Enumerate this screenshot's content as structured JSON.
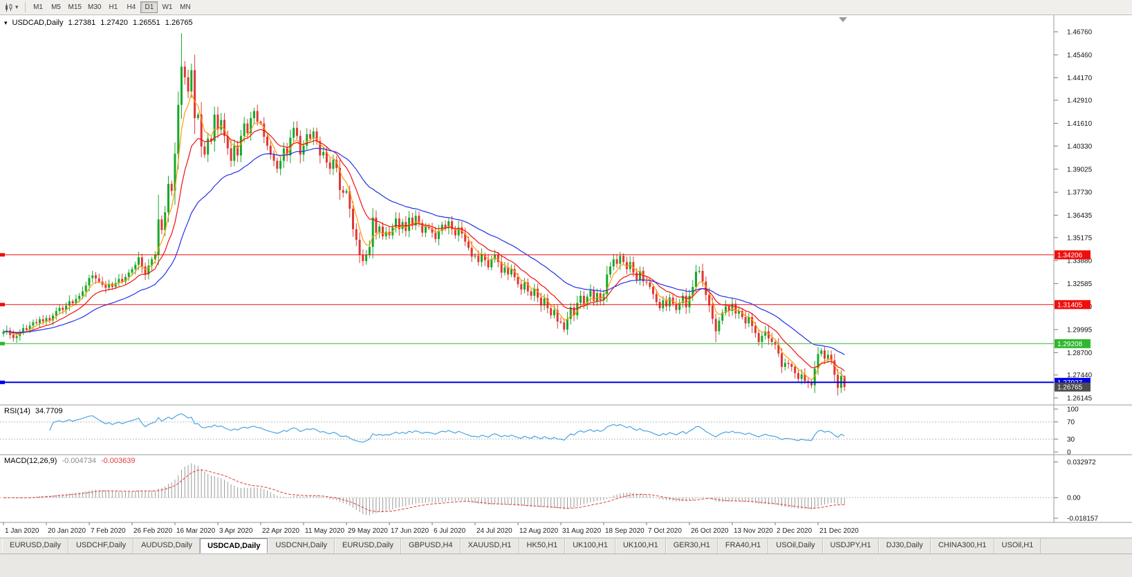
{
  "toolbar": {
    "timeframes": [
      "M1",
      "M5",
      "M15",
      "M30",
      "H1",
      "H4",
      "D1",
      "W1",
      "MN"
    ],
    "active": "D1"
  },
  "header": {
    "symbol": "USDCAD,Daily",
    "open": "1.27381",
    "high": "1.27420",
    "low": "1.26551",
    "close": "1.26765"
  },
  "indicators": {
    "rsi_name": "RSI(14)",
    "rsi_value": "34.7709",
    "macd_name": "MACD(12,26,9)",
    "macd_main": "-0.004734",
    "macd_signal": "-0.003639"
  },
  "tabs": {
    "items": [
      "EURUSD,Daily",
      "USDCHF,Daily",
      "AUDUSD,Daily",
      "USDCAD,Daily",
      "USDCNH,Daily",
      "EURUSD,Daily",
      "GBPUSD,H4",
      "XAUUSD,H1",
      "HK50,H1",
      "UK100,H1",
      "UK100,H1",
      "GER30,H1",
      "FRA40,H1",
      "USOil,Daily",
      "USDJPY,H1",
      "DJ30,Daily",
      "CHINA300,H1",
      "USOil,H1"
    ],
    "active_index": 3
  },
  "chart_data": {
    "type": "candlestick",
    "symbol": "USDCAD",
    "timeframe": "Daily",
    "x_labels": [
      "1 Jan 2020",
      "20 Jan 2020",
      "7 Feb 2020",
      "26 Feb 2020",
      "16 Mar 2020",
      "3 Apr 2020",
      "22 Apr 2020",
      "11 May 2020",
      "29 May 2020",
      "17 Jun 2020",
      "6 Jul 2020",
      "24 Jul 2020",
      "12 Aug 2020",
      "31 Aug 2020",
      "18 Sep 2020",
      "7 Oct 2020",
      "26 Oct 2020",
      "13 Nov 2020",
      "2 Dec 2020",
      "21 Dec 2020"
    ],
    "candles_per_label": 13,
    "closes": [
      1.2988,
      1.2995,
      1.297,
      1.2952,
      1.2963,
      1.2985,
      1.3008,
      1.2998,
      1.3022,
      1.3041,
      1.3035,
      1.3058,
      1.3046,
      1.3065,
      1.3052,
      1.3078,
      1.3104,
      1.3122,
      1.311,
      1.3135,
      1.316,
      1.3148,
      1.3172,
      1.319,
      1.3215,
      1.3248,
      1.329,
      1.3305,
      1.3288,
      1.327,
      1.3252,
      1.3235,
      1.3258,
      1.324,
      1.3262,
      1.3285,
      1.327,
      1.3296,
      1.332,
      1.334,
      1.3365,
      1.3407,
      1.3355,
      1.331,
      1.336,
      1.3395,
      1.342,
      1.362,
      1.356,
      1.366,
      1.382,
      1.378,
      1.399,
      1.4265,
      1.448,
      1.442,
      1.434,
      1.446,
      1.419,
      1.421,
      1.403,
      1.3985,
      1.4075,
      1.406,
      1.421,
      1.4125,
      1.418,
      1.409,
      1.402,
      1.395,
      1.4035,
      1.398,
      1.409,
      1.416,
      1.4105,
      1.419,
      1.423,
      1.417,
      1.416,
      1.4085,
      1.4035,
      1.3985,
      1.395,
      1.3905,
      1.395,
      1.402,
      1.398,
      1.408,
      1.4135,
      1.409,
      1.3985,
      1.4035,
      1.41,
      1.4075,
      1.4115,
      1.406,
      1.398,
      1.4,
      1.394,
      1.3905,
      1.3955,
      1.391,
      1.3785,
      1.377,
      1.378,
      1.368,
      1.3565,
      1.3505,
      1.342,
      1.3385,
      1.342,
      1.3465,
      1.363,
      1.3545,
      1.358,
      1.3525,
      1.355,
      1.353,
      1.3575,
      1.3625,
      1.3565,
      1.3605,
      1.3555,
      1.363,
      1.3585,
      1.364,
      1.36,
      1.3545,
      1.358,
      1.357,
      1.3545,
      1.351,
      1.3555,
      1.359,
      1.357,
      1.361,
      1.3565,
      1.353,
      1.3575,
      1.354,
      1.3495,
      1.346,
      1.341,
      1.3415,
      1.338,
      1.342,
      1.339,
      1.335,
      1.3395,
      1.342,
      1.338,
      1.332,
      1.335,
      1.331,
      1.334,
      1.3295,
      1.3255,
      1.3225,
      1.3265,
      1.3215,
      1.319,
      1.323,
      1.318,
      1.3135,
      1.3175,
      1.312,
      1.308,
      1.311,
      1.3045,
      1.304,
      1.3,
      1.306,
      1.3125,
      1.308,
      1.315,
      1.319,
      1.3145,
      1.3185,
      1.322,
      1.316,
      1.3205,
      1.3165,
      1.32,
      1.331,
      1.3355,
      1.3395,
      1.337,
      1.3415,
      1.338,
      1.334,
      1.338,
      1.332,
      1.328,
      1.333,
      1.327,
      1.3265,
      1.324,
      1.32,
      1.3155,
      1.312,
      1.3165,
      1.313,
      1.318,
      1.3145,
      1.311,
      1.315,
      1.319,
      1.3125,
      1.319,
      1.324,
      1.3325,
      1.333,
      1.327,
      1.3195,
      1.3135,
      1.306,
      1.299,
      1.305,
      1.3095,
      1.313,
      1.3105,
      1.3145,
      1.309,
      1.3105,
      1.307,
      1.3035,
      1.307,
      1.302,
      1.298,
      1.293,
      1.2965,
      1.299,
      1.295,
      1.293,
      1.2915,
      1.2865,
      1.279,
      1.2812,
      1.2806,
      1.279,
      1.2755,
      1.2722,
      1.2748,
      1.271,
      1.27,
      1.2686,
      1.278,
      1.2862,
      1.2882,
      1.2836,
      1.2858,
      1.2826,
      1.2745,
      1.2672,
      1.2738,
      1.26765
    ],
    "candle_overrides": {
      "high": {
        "47": 1.3758,
        "54": 1.4668,
        "255": 1.2742
      },
      "low": {
        "216": 1.2928,
        "255": 1.26551
      }
    },
    "price_axis": {
      "ticks": [
        "1.46760",
        "1.45460",
        "1.44170",
        "1.42910",
        "1.41610",
        "1.40330",
        "1.39025",
        "1.37730",
        "1.36435",
        "1.35175",
        "1.33880",
        "1.32585",
        "1.31290",
        "1.29995",
        "1.28700",
        "1.27440",
        "1.26145"
      ],
      "levels": [
        {
          "price": 1.34206,
          "color": "#f20d0d",
          "width": 1
        },
        {
          "price": 1.31405,
          "color": "#f20d0d",
          "width": 1
        },
        {
          "price": 1.29208,
          "color": "#2eb82e",
          "width": 1
        },
        {
          "price": 1.27027,
          "color": "#0000e6",
          "width": 2
        }
      ],
      "current": {
        "price": 1.26765,
        "label": "1.26765",
        "box": "#4d4d4d"
      }
    },
    "moving_averages": [
      {
        "period": 5,
        "color": "#ff9c00"
      },
      {
        "period": 13,
        "color": "#f20d0d"
      },
      {
        "period": 34,
        "color": "#2031e8"
      }
    ],
    "rsi": {
      "period": 14,
      "levels": [
        100,
        70,
        30,
        0
      ],
      "color": "#4aa3e0"
    },
    "macd": {
      "fast": 12,
      "slow": 26,
      "signal": 9,
      "axis": [
        "0.032972",
        "0.00",
        "-0.018157"
      ],
      "hist_color": "#9a9a9a",
      "signal_color": "#e23b3b"
    },
    "colors": {
      "bull": "#14a929",
      "bear": "#e03636",
      "background": "#ffffff",
      "border": "#9a9a9a"
    }
  }
}
